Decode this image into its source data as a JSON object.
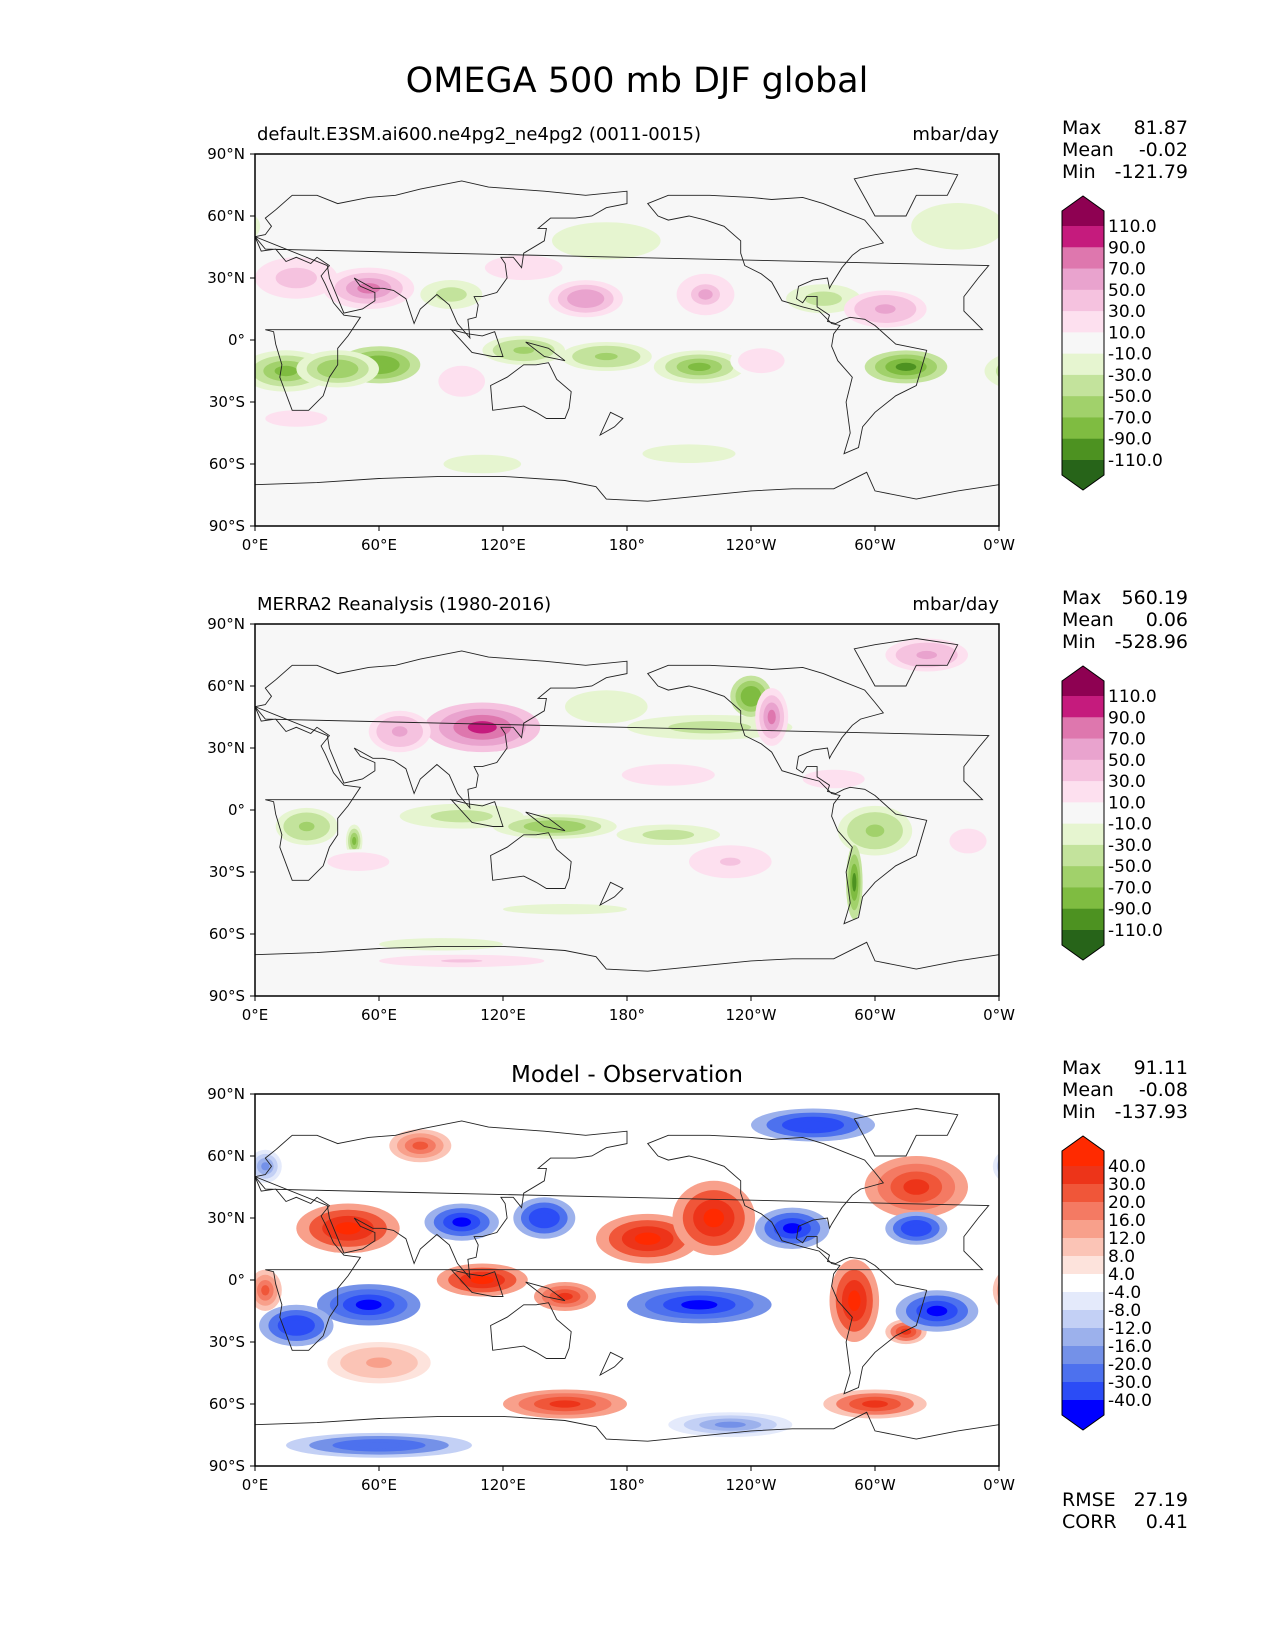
{
  "figure": {
    "title": "OMEGA 500 mb DJF global"
  },
  "colors": {
    "piyg": [
      "#276419",
      "#4d9221",
      "#7fbc41",
      "#a1d16b",
      "#c3e39c",
      "#e6f5d0",
      "#f7f7f7",
      "#fde0ef",
      "#f5c2df",
      "#e9a3ce",
      "#de77ae",
      "#c51b7d",
      "#8e0152"
    ],
    "bwr": [
      "#0000ff",
      "#2b4cf6",
      "#4d71ee",
      "#7491e8",
      "#9cb1ec",
      "#c3d0f5",
      "#e4eafb",
      "#ffffff",
      "#fde3dc",
      "#fbc4b6",
      "#f8a08b",
      "#f47a63",
      "#f05639",
      "#ed3419",
      "#ff2a00"
    ]
  },
  "panels": [
    {
      "id": "model",
      "left_title": "default.E3SM.ai600.ne4pg2_ne4pg2 (0011-0015)",
      "center_title": "",
      "right_title": "mbar/day",
      "stats": [
        {
          "label": "Max",
          "value": "81.87"
        },
        {
          "label": "Mean",
          "value": "-0.02"
        },
        {
          "label": "Min",
          "value": "-121.79"
        }
      ],
      "footer_stats": [],
      "cbar_ticks": [
        "110.0",
        "90.0",
        "70.0",
        "50.0",
        "30.0",
        "10.0",
        "-10.0",
        "-30.0",
        "-50.0",
        "-70.0",
        "-90.0",
        "-110.0"
      ],
      "palette": "piyg"
    },
    {
      "id": "obs",
      "left_title": "MERRA2 Reanalysis (1980-2016)",
      "center_title": "",
      "right_title": "mbar/day",
      "stats": [
        {
          "label": "Max",
          "value": "560.19"
        },
        {
          "label": "Mean",
          "value": "0.06"
        },
        {
          "label": "Min",
          "value": "-528.96"
        }
      ],
      "footer_stats": [],
      "cbar_ticks": [
        "110.0",
        "90.0",
        "70.0",
        "50.0",
        "30.0",
        "10.0",
        "-10.0",
        "-30.0",
        "-50.0",
        "-70.0",
        "-90.0",
        "-110.0"
      ],
      "palette": "piyg"
    },
    {
      "id": "diff",
      "left_title": "",
      "center_title": "Model - Observation",
      "right_title": "",
      "stats": [
        {
          "label": "Max",
          "value": "91.11"
        },
        {
          "label": "Mean",
          "value": "-0.08"
        },
        {
          "label": "Min",
          "value": "-137.93"
        }
      ],
      "footer_stats": [
        {
          "label": "RMSE",
          "value": "27.19"
        },
        {
          "label": "CORR",
          "value": "0.41"
        }
      ],
      "cbar_ticks": [
        "40.0",
        "30.0",
        "20.0",
        "16.0",
        "12.0",
        "8.0",
        "4.0",
        "-4.0",
        "-8.0",
        "-12.0",
        "-16.0",
        "-20.0",
        "-30.0",
        "-40.0"
      ],
      "palette": "bwr"
    }
  ],
  "chart_data": [
    {
      "type": "heatmap",
      "title": "default.E3SM.ai600.ne4pg2_ne4pg2 (0011-0015)",
      "units": "mbar/day",
      "x_ticks": [
        "0°E",
        "60°E",
        "120°E",
        "180°",
        "120°W",
        "60°W",
        "0°W"
      ],
      "y_ticks": [
        "90°N",
        "60°N",
        "30°N",
        "0°",
        "30°S",
        "60°S",
        "90°S"
      ],
      "xlim": [
        0,
        360
      ],
      "ylim": [
        -90,
        90
      ],
      "features": [
        {
          "lon": 15,
          "lat": -15,
          "value": -80,
          "rlon": 22,
          "rlat": 10
        },
        {
          "lon": 60,
          "lat": -12,
          "value": -90,
          "rlon": 20,
          "rlat": 9
        },
        {
          "lon": 40,
          "lat": -14,
          "value": -70,
          "rlon": 20,
          "rlat": 9
        },
        {
          "lon": 130,
          "lat": -5,
          "value": -55,
          "rlon": 20,
          "rlat": 7
        },
        {
          "lon": 170,
          "lat": -8,
          "value": -60,
          "rlon": 22,
          "rlat": 7
        },
        {
          "lon": 215,
          "lat": -13,
          "value": -85,
          "rlon": 22,
          "rlat": 8
        },
        {
          "lon": 315,
          "lat": -13,
          "value": -100,
          "rlon": 20,
          "rlat": 8
        },
        {
          "lon": 95,
          "lat": 22,
          "value": -40,
          "rlon": 15,
          "rlat": 7
        },
        {
          "lon": 275,
          "lat": 20,
          "value": -40,
          "rlon": 18,
          "rlat": 7
        },
        {
          "lon": 170,
          "lat": 48,
          "value": -25,
          "rlon": 35,
          "rlat": 12
        },
        {
          "lon": 340,
          "lat": 55,
          "value": -25,
          "rlon": 30,
          "rlat": 15
        },
        {
          "lon": 110,
          "lat": -60,
          "value": -20,
          "rlon": 25,
          "rlat": 6
        },
        {
          "lon": 210,
          "lat": -55,
          "value": -20,
          "rlon": 30,
          "rlat": 6
        },
        {
          "lon": 55,
          "lat": 25,
          "value": 75,
          "rlon": 22,
          "rlat": 10
        },
        {
          "lon": 20,
          "lat": 30,
          "value": 40,
          "rlon": 20,
          "rlat": 10
        },
        {
          "lon": 160,
          "lat": 20,
          "value": 65,
          "rlon": 18,
          "rlat": 9
        },
        {
          "lon": 218,
          "lat": 22,
          "value": 50,
          "rlon": 14,
          "rlat": 10
        },
        {
          "lon": 305,
          "lat": 15,
          "value": 60,
          "rlon": 20,
          "rlat": 9
        },
        {
          "lon": 130,
          "lat": 35,
          "value": 25,
          "rlon": 25,
          "rlat": 8
        },
        {
          "lon": 100,
          "lat": -20,
          "value": 25,
          "rlon": 15,
          "rlat": 10
        },
        {
          "lon": 245,
          "lat": -10,
          "value": 25,
          "rlon": 15,
          "rlat": 8
        },
        {
          "lon": 20,
          "lat": -38,
          "value": 15,
          "rlon": 30,
          "rlat": 8
        }
      ]
    },
    {
      "type": "heatmap",
      "title": "MERRA2 Reanalysis (1980-2016)",
      "units": "mbar/day",
      "x_ticks": [
        "0°E",
        "60°E",
        "120°E",
        "180°",
        "120°W",
        "60°W",
        "0°W"
      ],
      "y_ticks": [
        "90°N",
        "60°N",
        "30°N",
        "0°",
        "30°S",
        "60°S",
        "90°S"
      ],
      "xlim": [
        0,
        360
      ],
      "ylim": [
        -90,
        90
      ],
      "features": [
        {
          "lon": 25,
          "lat": -8,
          "value": -60,
          "rlon": 15,
          "rlat": 9
        },
        {
          "lon": 48,
          "lat": -15,
          "value": -80,
          "rlon": 4,
          "rlat": 8
        },
        {
          "lon": 100,
          "lat": -3,
          "value": -50,
          "rlon": 30,
          "rlat": 6
        },
        {
          "lon": 145,
          "lat": -8,
          "value": -70,
          "rlon": 30,
          "rlat": 6
        },
        {
          "lon": 200,
          "lat": -12,
          "value": -40,
          "rlon": 25,
          "rlat": 5
        },
        {
          "lon": 300,
          "lat": -10,
          "value": -60,
          "rlon": 18,
          "rlat": 12
        },
        {
          "lon": 290,
          "lat": -35,
          "value": -100,
          "rlon": 4,
          "rlat": 18
        },
        {
          "lon": 220,
          "lat": 40,
          "value": -40,
          "rlon": 40,
          "rlat": 6
        },
        {
          "lon": 240,
          "lat": 55,
          "value": -90,
          "rlon": 10,
          "rlat": 10
        },
        {
          "lon": 170,
          "lat": 50,
          "value": -30,
          "rlon": 20,
          "rlat": 8
        },
        {
          "lon": 110,
          "lat": 40,
          "value": 90,
          "rlon": 28,
          "rlat": 12
        },
        {
          "lon": 70,
          "lat": 38,
          "value": 60,
          "rlon": 15,
          "rlat": 10
        },
        {
          "lon": 250,
          "lat": 45,
          "value": 70,
          "rlon": 8,
          "rlat": 14
        },
        {
          "lon": 325,
          "lat": 75,
          "value": 60,
          "rlon": 20,
          "rlat": 8
        },
        {
          "lon": 200,
          "lat": 17,
          "value": 20,
          "rlon": 30,
          "rlat": 7
        },
        {
          "lon": 280,
          "lat": 15,
          "value": 25,
          "rlon": 20,
          "rlat": 6
        },
        {
          "lon": 230,
          "lat": -25,
          "value": 30,
          "rlon": 20,
          "rlat": 8
        },
        {
          "lon": 345,
          "lat": -15,
          "value": 20,
          "rlon": 12,
          "rlat": 8
        },
        {
          "lon": 50,
          "lat": -25,
          "value": 20,
          "rlon": 20,
          "rlat": 6
        },
        {
          "lon": 90,
          "lat": -65,
          "value": -20,
          "rlon": 40,
          "rlat": 4
        },
        {
          "lon": 150,
          "lat": -48,
          "value": -15,
          "rlon": 60,
          "rlat": 5
        },
        {
          "lon": 100,
          "lat": -73,
          "value": 30,
          "rlon": 40,
          "rlat": 3
        }
      ]
    },
    {
      "type": "heatmap",
      "title": "Model - Observation",
      "x_ticks": [
        "0°E",
        "60°E",
        "120°E",
        "180°",
        "120°W",
        "60°W",
        "0°W"
      ],
      "y_ticks": [
        "90°N",
        "60°N",
        "30°N",
        "0°",
        "30°S",
        "60°S",
        "90°S"
      ],
      "xlim": [
        0,
        360
      ],
      "ylim": [
        -90,
        90
      ],
      "features": [
        {
          "lon": 45,
          "lat": 25,
          "value": 40,
          "rlon": 25,
          "rlat": 12
        },
        {
          "lon": 110,
          "lat": 0,
          "value": 40,
          "rlon": 22,
          "rlat": 8
        },
        {
          "lon": 150,
          "lat": -8,
          "value": 35,
          "rlon": 15,
          "rlat": 7
        },
        {
          "lon": 190,
          "lat": 20,
          "value": 40,
          "rlon": 25,
          "rlat": 12
        },
        {
          "lon": 222,
          "lat": 30,
          "value": 40,
          "rlon": 20,
          "rlat": 18
        },
        {
          "lon": 290,
          "lat": -10,
          "value": 45,
          "rlon": 12,
          "rlat": 20
        },
        {
          "lon": 320,
          "lat": 45,
          "value": 35,
          "rlon": 25,
          "rlat": 15
        },
        {
          "lon": 150,
          "lat": -60,
          "value": 35,
          "rlon": 30,
          "rlat": 7
        },
        {
          "lon": 300,
          "lat": -60,
          "value": 30,
          "rlon": 25,
          "rlat": 7
        },
        {
          "lon": 315,
          "lat": -25,
          "value": 30,
          "rlon": 10,
          "rlat": 6
        },
        {
          "lon": 5,
          "lat": -5,
          "value": 25,
          "rlon": 8,
          "rlat": 10
        },
        {
          "lon": 80,
          "lat": 65,
          "value": 25,
          "rlon": 15,
          "rlat": 8
        },
        {
          "lon": 60,
          "lat": -40,
          "value": 15,
          "rlon": 25,
          "rlat": 10
        },
        {
          "lon": 55,
          "lat": -12,
          "value": -50,
          "rlon": 25,
          "rlat": 10
        },
        {
          "lon": 20,
          "lat": -22,
          "value": -40,
          "rlon": 18,
          "rlat": 10
        },
        {
          "lon": 100,
          "lat": 28,
          "value": -45,
          "rlon": 18,
          "rlat": 9
        },
        {
          "lon": 140,
          "lat": 30,
          "value": -40,
          "rlon": 15,
          "rlat": 10
        },
        {
          "lon": 215,
          "lat": -12,
          "value": -50,
          "rlon": 35,
          "rlat": 9
        },
        {
          "lon": 260,
          "lat": 25,
          "value": -45,
          "rlon": 18,
          "rlat": 10
        },
        {
          "lon": 330,
          "lat": -15,
          "value": -45,
          "rlon": 20,
          "rlat": 10
        },
        {
          "lon": 320,
          "lat": 25,
          "value": -40,
          "rlon": 15,
          "rlat": 8
        },
        {
          "lon": 270,
          "lat": 75,
          "value": -40,
          "rlon": 30,
          "rlat": 8
        },
        {
          "lon": 60,
          "lat": -80,
          "value": -30,
          "rlon": 45,
          "rlat": 6
        },
        {
          "lon": 230,
          "lat": -70,
          "value": -20,
          "rlon": 30,
          "rlat": 6
        },
        {
          "lon": 5,
          "lat": 55,
          "value": -20,
          "rlon": 8,
          "rlat": 8
        }
      ]
    }
  ]
}
